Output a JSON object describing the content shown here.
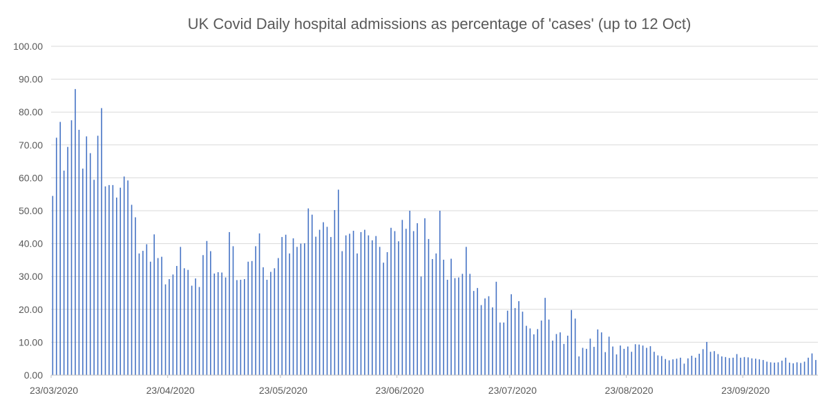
{
  "chart_data": {
    "type": "bar",
    "title": "UK Covid Daily hospital admissions as percentage of 'cases' (up to 12 Oct)",
    "xlabel": "",
    "ylabel": "",
    "ylim": [
      0,
      100
    ],
    "yticks": [
      "0.00",
      "10.00",
      "20.00",
      "30.00",
      "40.00",
      "50.00",
      "60.00",
      "70.00",
      "80.00",
      "90.00",
      "100.00"
    ],
    "x_start": "23/03/2020",
    "x_end": "12/10/2020",
    "xtick_labels": [
      "23/03/2020",
      "23/04/2020",
      "23/05/2020",
      "23/06/2020",
      "23/07/2020",
      "23/08/2020",
      "23/09/2020"
    ],
    "grid": true,
    "legend": "none",
    "bar_color": "#4472c4",
    "series": [
      {
        "values": [
          54.5,
          72.2,
          77.0,
          62.2,
          69.4,
          77.5,
          87.0,
          74.6,
          62.8,
          72.6,
          67.5,
          59.4,
          72.8,
          81.2,
          57.4,
          57.8,
          57.8,
          54.0,
          57.0,
          60.4,
          59.2,
          51.8,
          48.0,
          37.0,
          37.8,
          39.8,
          34.5,
          42.8,
          35.6,
          36.0,
          27.6,
          29.2,
          30.6,
          33.2,
          39.0,
          32.5,
          32.0,
          27.2,
          29.4,
          26.8,
          36.5,
          40.8,
          37.7,
          30.9,
          31.3,
          31.2,
          29.7,
          43.5,
          39.2,
          28.9,
          29.0,
          29.2,
          34.5,
          34.7,
          39.2,
          43.1,
          32.8,
          29.0,
          31.4,
          32.5,
          35.6,
          42.0,
          42.7,
          37.0,
          41.6,
          39.0,
          40.0,
          40.1,
          50.7,
          48.8,
          42.1,
          44.2,
          46.5,
          45.1,
          42.0,
          50.2,
          56.4,
          37.7,
          42.5,
          43.0,
          43.9,
          37.0,
          43.5,
          44.2,
          42.5,
          41.0,
          42.3,
          39.0,
          34.2,
          37.4,
          44.8,
          43.8,
          40.7,
          47.2,
          44.5,
          50.0,
          43.8,
          46.2,
          30.0,
          47.7,
          41.4,
          35.3,
          37.0,
          50.0,
          35.1,
          29.0,
          35.4,
          29.5,
          29.7,
          30.8,
          39.0,
          30.8,
          25.6,
          26.5,
          21.3,
          23.3,
          24.0,
          20.6,
          28.4,
          16.0,
          16.0,
          19.6,
          24.6,
          20.4,
          22.5,
          19.3,
          15.0,
          14.2,
          12.4,
          14.0,
          16.6,
          23.5,
          16.9,
          10.5,
          12.5,
          13.0,
          9.5,
          12.0,
          19.8,
          17.2,
          5.7,
          8.3,
          8.0,
          11.1,
          8.6,
          13.9,
          13.0,
          7.0,
          11.7,
          8.7,
          6.3,
          9.0,
          8.0,
          8.7,
          7.1,
          9.4,
          9.3,
          9.0,
          8.3,
          8.8,
          7.1,
          6.0,
          5.8,
          4.9,
          4.5,
          4.8,
          5.0,
          5.3,
          3.5,
          5.1,
          5.9,
          5.3,
          6.5,
          7.9,
          10.1,
          7.1,
          7.3,
          6.4,
          5.7,
          5.5,
          5.2,
          5.3,
          6.4,
          5.3,
          5.5,
          5.4,
          5.1,
          5.0,
          4.8,
          4.6,
          4.1,
          3.9,
          3.8,
          3.9,
          4.4,
          5.3,
          3.8,
          3.6,
          3.9,
          3.7,
          4.1,
          5.3,
          6.6,
          4.6
        ]
      }
    ]
  }
}
